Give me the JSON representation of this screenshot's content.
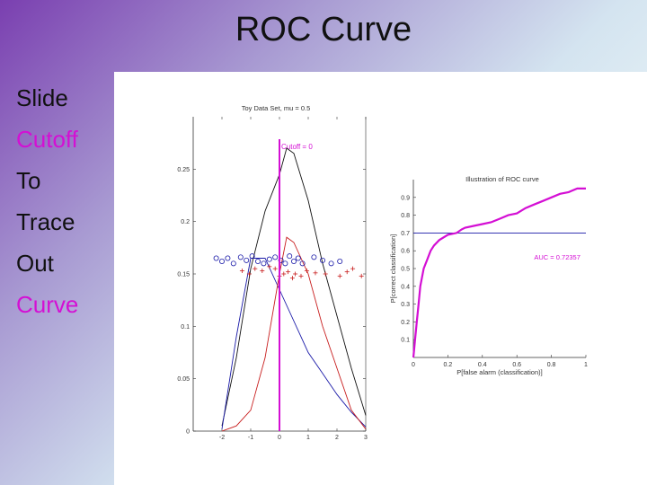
{
  "slide": {
    "title": "ROC Curve",
    "bullets": [
      {
        "text": "Slide",
        "accent": false
      },
      {
        "text": "Cutoff",
        "accent": true
      },
      {
        "text": "To",
        "accent": false
      },
      {
        "text": "Trace",
        "accent": false
      },
      {
        "text": "Out",
        "accent": false
      },
      {
        "text": "Curve",
        "accent": true
      }
    ]
  },
  "colors": {
    "accent": "#d40fd4",
    "blue": "#1a1aa8",
    "red": "#c81e1e",
    "black": "#111111"
  },
  "chart_data": [
    {
      "type": "line",
      "title": "Toy Data Set, mu = 0.5",
      "annotation": "Cutoff = 0",
      "xlim": [
        -3,
        3
      ],
      "ylim": [
        0,
        0.3
      ],
      "x_ticks": [
        -2,
        -1,
        0,
        1,
        2,
        3
      ],
      "x_tick_labels": [
        "-2",
        "-1",
        "0",
        "1",
        "2",
        "3"
      ],
      "y_ticks": [
        0,
        0.05,
        0.1,
        0.15,
        0.2,
        0.25
      ],
      "y_tick_labels": [
        "0",
        "0.05",
        "0.1",
        "0.15",
        "0.2",
        "0.25"
      ],
      "cutoff_x": 0,
      "series": [
        {
          "color": "#111111",
          "x": [
            -2,
            -1.5,
            -1,
            -0.5,
            0,
            0.25,
            0.5,
            1,
            1.5,
            2,
            2.5,
            3
          ],
          "values": [
            0.005,
            0.07,
            0.155,
            0.21,
            0.245,
            0.27,
            0.265,
            0.22,
            0.16,
            0.11,
            0.06,
            0.015
          ]
        },
        {
          "color": "#1a1aa8",
          "x": [
            -2,
            -1.5,
            -1,
            -0.5,
            0,
            0.5,
            1,
            1.5,
            2,
            2.5,
            3
          ],
          "values": [
            0.002,
            0.09,
            0.165,
            0.165,
            0.135,
            0.105,
            0.075,
            0.055,
            0.035,
            0.018,
            0.004
          ]
        },
        {
          "color": "#c81e1e",
          "x": [
            -2,
            -1.5,
            -1,
            -0.5,
            0,
            0.25,
            0.5,
            1,
            1.5,
            2,
            2.5,
            3
          ],
          "values": [
            0.0,
            0.005,
            0.02,
            0.07,
            0.15,
            0.185,
            0.18,
            0.15,
            0.1,
            0.06,
            0.02,
            0.002
          ]
        }
      ],
      "scatter_circles": {
        "color": "#1a1aa8",
        "x": [
          -2.2,
          -2.0,
          -1.8,
          -1.6,
          -1.35,
          -1.15,
          -0.95,
          -0.75,
          -0.55,
          -0.35,
          -0.15,
          0.05,
          0.2,
          0.35,
          0.5,
          0.65,
          0.8,
          1.2,
          1.5,
          1.8,
          2.1
        ],
        "values": [
          0.165,
          0.162,
          0.165,
          0.16,
          0.166,
          0.163,
          0.167,
          0.162,
          0.16,
          0.164,
          0.166,
          0.163,
          0.16,
          0.167,
          0.162,
          0.165,
          0.16,
          0.166,
          0.163,
          0.16,
          0.162
        ]
      },
      "scatter_plus": {
        "color": "#c81e1e",
        "x": [
          -1.3,
          -1.05,
          -0.85,
          -0.6,
          -0.35,
          -0.15,
          0.0,
          0.15,
          0.3,
          0.45,
          0.55,
          0.75,
          0.95,
          1.25,
          1.6,
          2.1,
          2.35,
          2.55,
          2.85
        ],
        "values": [
          0.153,
          0.15,
          0.155,
          0.153,
          0.157,
          0.155,
          0.148,
          0.15,
          0.152,
          0.146,
          0.15,
          0.148,
          0.153,
          0.151,
          0.15,
          0.148,
          0.152,
          0.155,
          0.148
        ]
      }
    },
    {
      "type": "line",
      "title": "Illustration of ROC curve",
      "xlabel": "P[false alarm (classification)]",
      "ylabel": "P[correct classification]",
      "annotation": "AUC = 0.72357",
      "xlim": [
        0,
        1
      ],
      "ylim": [
        0,
        1
      ],
      "x_ticks": [
        0,
        0.2,
        0.4,
        0.6,
        0.8,
        1
      ],
      "x_tick_labels": [
        "0",
        "0.2",
        "0.4",
        "0.6",
        "0.8",
        "1"
      ],
      "y_ticks": [
        0.1,
        0.2,
        0.3,
        0.4,
        0.5,
        0.6,
        0.7,
        0.8,
        0.9
      ],
      "y_tick_labels": [
        "0.1",
        "0.2",
        "0.3",
        "0.4",
        "0.5",
        "0.6",
        "0.7",
        "0.8",
        "0.9"
      ],
      "reference_line_y": 0.7,
      "series": [
        {
          "color": "#d40fd4",
          "x": [
            0,
            0.01,
            0.02,
            0.03,
            0.04,
            0.05,
            0.06,
            0.08,
            0.1,
            0.12,
            0.15,
            0.2,
            0.25,
            0.28,
            0.3,
            0.35,
            0.4,
            0.45,
            0.5,
            0.55,
            0.6,
            0.65,
            0.7,
            0.75,
            0.8,
            0.85,
            0.9,
            0.95,
            1.0
          ],
          "values": [
            0.0,
            0.1,
            0.2,
            0.3,
            0.4,
            0.45,
            0.5,
            0.55,
            0.6,
            0.63,
            0.66,
            0.69,
            0.7,
            0.72,
            0.73,
            0.74,
            0.75,
            0.76,
            0.78,
            0.8,
            0.81,
            0.84,
            0.86,
            0.88,
            0.9,
            0.92,
            0.93,
            0.95,
            0.95
          ]
        }
      ]
    }
  ]
}
